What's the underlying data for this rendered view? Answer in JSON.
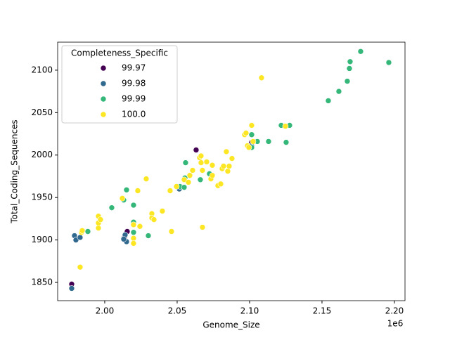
{
  "chart_data": {
    "type": "scatter",
    "xlabel": "Genome_Size",
    "ylabel": "Total_Coding_Sequences",
    "x_offset_label": "1e6",
    "xlim": [
      1967500,
      2207300
    ],
    "ylim": [
      1828.5,
      2133
    ],
    "xticks": [
      {
        "value": 2000000,
        "label": "2.00"
      },
      {
        "value": 2050000,
        "label": "2.05"
      },
      {
        "value": 2100000,
        "label": "2.10"
      },
      {
        "value": 2150000,
        "label": "2.15"
      },
      {
        "value": 2200000,
        "label": "2.20"
      }
    ],
    "yticks": [
      1850,
      1900,
      1950,
      2000,
      2050,
      2100
    ],
    "grid": false,
    "legend_title": "Completeness_Specific",
    "legend_position": "upper-left",
    "series": [
      {
        "name": "99.97",
        "color": "#440154",
        "x": [
          1977187,
          2063100,
          2015530,
          2013590,
          2101450
        ],
        "values": [
          1848,
          2006,
          1910,
          1903,
          2015
        ]
      },
      {
        "name": "99.98",
        "color": "#31688e",
        "x": [
          1977190,
          1979130,
          1980100,
          1983010,
          2014080,
          2015050,
          2051450,
          2101450,
          2013100
        ],
        "values": [
          1843,
          1905,
          1900,
          1903,
          1906,
          1898,
          1960,
          2011,
          1901
        ]
      },
      {
        "name": "99.99",
        "color": "#35b779",
        "x": [
          1988350,
          2004850,
          2013100,
          2015050,
          2019900,
          2019900,
          2019900,
          2030100,
          2051940,
          2055820,
          2055340,
          2054850,
          2066010,
          2072320,
          2101450,
          2101450,
          2105330,
          2113100,
          2121840,
          2125240,
          2127660,
          2154360,
          2161640,
          2167470,
          2168920,
          2169410,
          2176690,
          2196110
        ],
        "values": [
          1910,
          1938,
          1947,
          1959,
          1941,
          1921,
          1909,
          1905,
          1963,
          1991,
          1973,
          1962,
          1971,
          1978,
          2024,
          2009,
          2016,
          2016,
          2035,
          2015,
          2035,
          2064,
          2075,
          2087,
          2102,
          2110,
          2122,
          2109
        ]
      },
      {
        "name": "100.0",
        "color": "#fde725",
        "x": [
          1983010,
          1983980,
          1984470,
          1995630,
          1995630,
          1995630,
          1997090,
          2012140,
          2019900,
          2019900,
          2019900,
          2022810,
          2024270,
          2028640,
          2032520,
          2032520,
          2033980,
          2039800,
          2045140,
          2046110,
          2049510,
          2054850,
          2057760,
          2058730,
          2060670,
          2065530,
          2066500,
          2066500,
          2067470,
          2067470,
          2070380,
          2073300,
          2074270,
          2074270,
          2078150,
          2080090,
          2081060,
          2082030,
          2083970,
          2084940,
          2085910,
          2087850,
          2096590,
          2097560,
          2098530,
          2099500,
          2101450,
          2102420,
          2108240,
          2124750
        ],
        "values": [
          1868,
          1909,
          1911,
          1928,
          1920,
          1914,
          1924,
          1949,
          1918,
          1902,
          1896,
          1958,
          1916,
          1972,
          1931,
          1926,
          1924,
          1934,
          1958,
          1910,
          1963,
          1971,
          1968,
          1976,
          1982,
          1997,
          1991,
          1999,
          1982,
          1915,
          1992,
          1972,
          1988,
          1976,
          1964,
          1966,
          1984,
          1987,
          2004,
          1981,
          1987,
          1996,
          2024,
          2026,
          2011,
          2009,
          2035,
          2016,
          2091,
          2034
        ]
      }
    ]
  }
}
